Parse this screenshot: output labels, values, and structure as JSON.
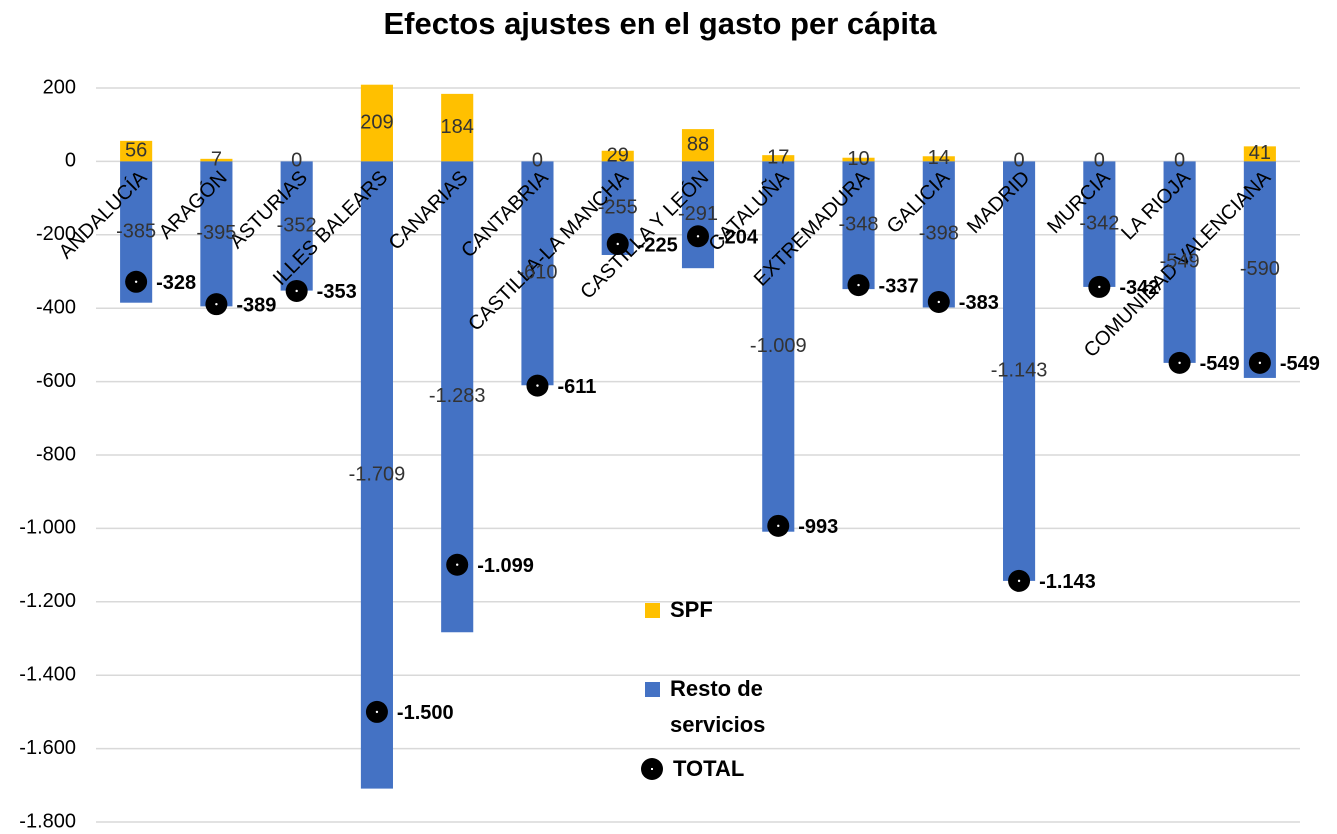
{
  "chart_data": {
    "type": "bar",
    "title": "Efectos ajustes en el gasto per cápita",
    "categories": [
      "ANDALUCÍA",
      "ARAGÓN",
      "ASTURIAS",
      "ILLES BALEARS",
      "CANARIAS",
      "CANTABRIA",
      "CASTILLA-LA MANCHA",
      "CASTILLA Y LEÓN",
      "CATALUÑA",
      "EXTREMADURA",
      "GALICIA",
      "MADRID",
      "MURCIA",
      "LA RIOJA",
      "COMUNIDAD VALENCIANA"
    ],
    "series": [
      {
        "name": "SPF",
        "color": "#FFC000",
        "values": [
          56,
          7,
          0,
          209,
          184,
          0,
          29,
          88,
          17,
          10,
          14,
          0,
          0,
          0,
          41
        ]
      },
      {
        "name": "Resto de servicios",
        "color": "#4472C4",
        "values": [
          -385,
          -395,
          -352,
          -1709,
          -1283,
          -610,
          -255,
          -291,
          -1009,
          -348,
          -398,
          -1143,
          -342,
          -549,
          -590
        ],
        "value_labels": [
          "-385",
          "-395",
          "-352",
          "-1.709",
          "-1.283",
          "-610",
          "-255",
          "-291",
          "-1.009",
          "-348",
          "-398",
          "-1.143",
          "-342",
          "-549",
          "-590"
        ]
      },
      {
        "name": "TOTAL",
        "color": "#000000",
        "marker": "dot",
        "values": [
          -328,
          -389,
          -353,
          -1500,
          -1099,
          -611,
          -225,
          -204,
          -993,
          -337,
          -383,
          -1143,
          -342,
          -549,
          -549
        ],
        "value_labels": [
          "-328",
          "-389",
          "-353",
          "-1.500",
          "-1.099",
          "-611",
          "-225",
          "-204",
          "-993",
          "-337",
          "-383",
          "-1.143",
          "-342",
          "-549",
          "-549"
        ]
      }
    ],
    "ylim": [
      -1800,
      200
    ],
    "yticks": [
      {
        "value": -1800,
        "label": "-1.800"
      },
      {
        "value": -1600,
        "label": "-1.600"
      },
      {
        "value": -1400,
        "label": "-1.400"
      },
      {
        "value": -1200,
        "label": "-1.200"
      },
      {
        "value": -1000,
        "label": "-1.000"
      },
      -800,
      -600,
      -400,
      -200,
      0,
      200
    ],
    "grid": true
  }
}
